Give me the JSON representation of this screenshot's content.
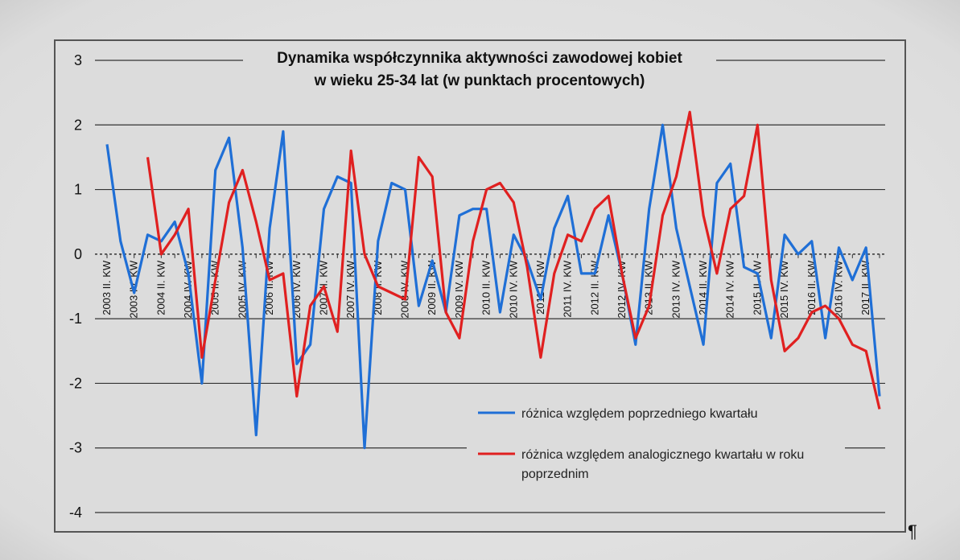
{
  "chart_data": {
    "type": "line",
    "title_line1": "Dynamika współczynnika aktywności zawodowej kobiet",
    "title_line2": "w wieku 25-34 lat (w punktach procentowych)",
    "ylim": [
      -4,
      3
    ],
    "yticks": [
      3,
      2,
      1,
      0,
      -1,
      -2,
      -3,
      -4
    ],
    "ytick_labels": [
      "3",
      "2",
      "1",
      "0",
      "-1",
      "-2",
      "-3",
      "-4"
    ],
    "grid": true,
    "legend_position": "bottom-right",
    "x_labels": [
      "2003 II. KW",
      "2003 IV. KW",
      "2004 II. KW",
      "2004 IV. KW",
      "2005 II. KW",
      "2005 IV. KW",
      "2006 II. KW",
      "2006 IV. KW",
      "2007 II. KW",
      "2007 IV. KW",
      "2008 II. KW",
      "2008 IV. KW",
      "2009 II. KW",
      "2009 IV. KW",
      "2010 II. KW",
      "2010 IV. KW",
      "2011 II. KW",
      "2011 IV. KW",
      "2012 II. KW",
      "2012 IV. KW",
      "2013 II. KW",
      "2013 IV. KW",
      "2014 II. KW",
      "2014 IV. KW",
      "2015 II. KW",
      "2015 IV. KW",
      "2016 II. KW",
      "2016 IV. KW",
      "2017 II. KW"
    ],
    "x_label_indices": [
      0,
      2,
      4,
      6,
      8,
      10,
      12,
      14,
      16,
      18,
      20,
      22,
      24,
      26,
      28,
      30,
      32,
      34,
      36,
      38,
      40,
      42,
      44,
      46,
      48,
      50,
      52,
      54,
      56
    ],
    "n_points": 58,
    "series": [
      {
        "name": "różnica względem poprzedniego kwartału",
        "color": "#1f6fd6",
        "values": [
          1.7,
          0.2,
          -0.6,
          0.3,
          0.2,
          0.5,
          -0.3,
          -2.0,
          1.3,
          1.8,
          0.1,
          -2.8,
          0.4,
          1.9,
          -1.7,
          -1.4,
          0.7,
          1.2,
          1.1,
          -3.0,
          0.2,
          1.1,
          1.0,
          -0.8,
          -0.1,
          -0.9,
          0.6,
          0.7,
          0.7,
          -0.9,
          0.3,
          -0.1,
          -0.7,
          0.4,
          0.9,
          -0.3,
          -0.3,
          0.6,
          -0.3,
          -1.4,
          0.7,
          2.0,
          0.4,
          -0.5,
          -1.4,
          1.1,
          1.4,
          -0.2,
          -0.3,
          -1.3,
          0.3,
          0.0,
          0.2,
          -1.3,
          0.1,
          -0.4,
          0.1,
          -2.2
        ]
      },
      {
        "name": "różnica względem analogicznego kwartału w roku poprzednim",
        "color": "#e02020",
        "values": [
          null,
          null,
          null,
          1.5,
          0.0,
          0.3,
          0.7,
          -1.6,
          -0.4,
          0.8,
          1.3,
          0.5,
          -0.4,
          -0.3,
          -2.2,
          -0.8,
          -0.5,
          -1.2,
          1.6,
          0.0,
          -0.5,
          -0.6,
          -0.7,
          1.5,
          1.2,
          -0.9,
          -1.3,
          0.2,
          1.0,
          1.1,
          0.8,
          -0.2,
          -1.6,
          -0.3,
          0.3,
          0.2,
          0.7,
          0.9,
          -0.3,
          -1.3,
          -0.8,
          0.6,
          1.2,
          2.2,
          0.6,
          -0.3,
          0.7,
          0.9,
          2.0,
          -0.4,
          -1.5,
          -1.3,
          -0.9,
          -0.8,
          -1.0,
          -1.4,
          -1.5,
          -2.4
        ]
      }
    ]
  },
  "page_mark": "¶"
}
